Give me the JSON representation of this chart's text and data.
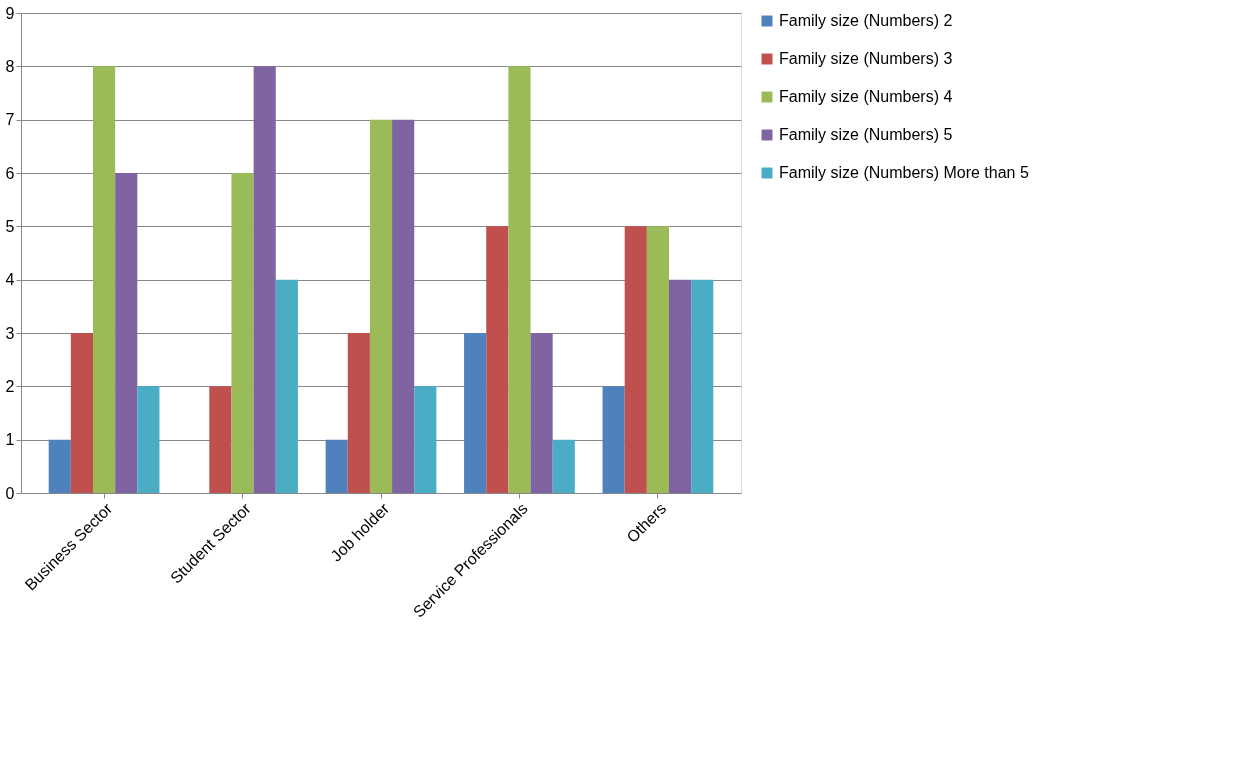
{
  "chart_data": {
    "type": "bar",
    "categories": [
      "Business Sector",
      "Student Sector",
      "Job holder",
      "Service Professionals",
      "Others"
    ],
    "series": [
      {
        "name": "Family size (Numbers) 2",
        "color": "#4f81bd",
        "values": [
          1,
          0,
          1,
          3,
          2
        ]
      },
      {
        "name": "Family size (Numbers) 3",
        "color": "#c0504d",
        "values": [
          3,
          2,
          3,
          5,
          5
        ]
      },
      {
        "name": "Family size (Numbers) 4",
        "color": "#9bbb59",
        "values": [
          8,
          6,
          7,
          8,
          5
        ]
      },
      {
        "name": "Family size (Numbers) 5",
        "color": "#8064a2",
        "values": [
          6,
          8,
          7,
          3,
          4
        ]
      },
      {
        "name": "Family size (Numbers) More than 5",
        "color": "#4bacc6",
        "values": [
          2,
          4,
          2,
          1,
          4
        ]
      }
    ],
    "ylim": [
      0,
      9
    ],
    "yticks": [
      0,
      1,
      2,
      3,
      4,
      5,
      6,
      7,
      8,
      9
    ],
    "grid": "y",
    "legend": "right"
  }
}
